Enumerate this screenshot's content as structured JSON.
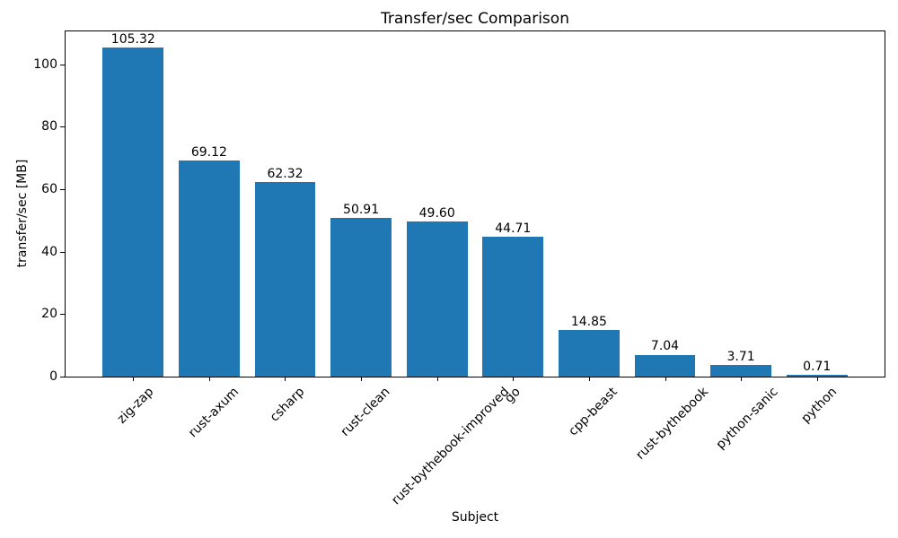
{
  "chart_data": {
    "type": "bar",
    "title": "Transfer/sec Comparison",
    "xlabel": "Subject",
    "ylabel": "transfer/sec [MB]",
    "categories": [
      "zig-zap",
      "rust-axum",
      "csharp",
      "rust-clean",
      "rust-bythebook-improved",
      "go",
      "cpp-beast",
      "rust-bythebook",
      "python-sanic",
      "python"
    ],
    "values": [
      105.32,
      69.12,
      62.32,
      50.91,
      49.6,
      44.71,
      14.85,
      7.04,
      3.71,
      0.71
    ],
    "value_labels": [
      "105.32",
      "69.12",
      "62.32",
      "50.91",
      "49.60",
      "44.71",
      "14.85",
      "7.04",
      "3.71",
      "0.71"
    ],
    "yticks": [
      0,
      20,
      40,
      60,
      80,
      100
    ],
    "ylim": [
      0,
      110.59
    ],
    "bar_color": "#1f77b4",
    "text_color": "#000000",
    "spine_color": "#000000",
    "background_color": "#ffffff",
    "grid": false,
    "legend": null,
    "x_tick_rotation_deg": 45
  }
}
